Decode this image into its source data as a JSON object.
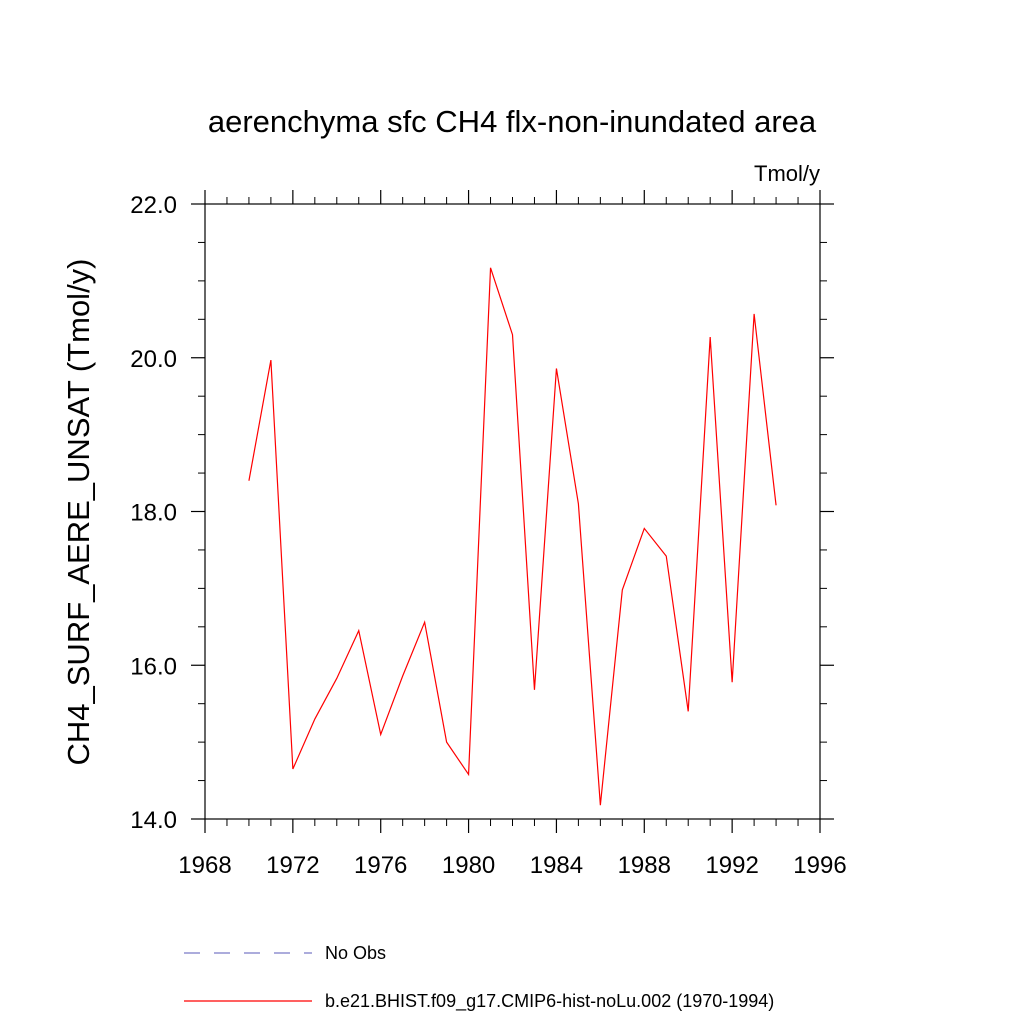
{
  "chart_data": {
    "type": "line",
    "title": "aerenchyma sfc CH4 flx-non-inundated area",
    "units_label": "Tmol/y",
    "xlabel": "",
    "ylabel": "CH4_SURF_AERE_UNSAT  (Tmol/y)",
    "xlim": [
      1968,
      1996
    ],
    "ylim": [
      14.0,
      22.0
    ],
    "x_ticks": [
      1968,
      1972,
      1976,
      1980,
      1984,
      1988,
      1992,
      1996
    ],
    "x_tick_labels": [
      "1968",
      "1972",
      "1976",
      "1980",
      "1984",
      "1988",
      "1992",
      "1996"
    ],
    "y_ticks": [
      14.0,
      16.0,
      18.0,
      20.0,
      22.0
    ],
    "y_tick_labels": [
      "14.0",
      "16.0",
      "18.0",
      "20.0",
      "22.0"
    ],
    "grid": false,
    "series": [
      {
        "name": "b.e21.BHIST.f09_g17.CMIP6-hist-noLu.002 (1970-1994)",
        "color": "#ff0000",
        "x": [
          1970,
          1971,
          1972,
          1973,
          1974,
          1975,
          1976,
          1977,
          1978,
          1979,
          1980,
          1981,
          1982,
          1983,
          1984,
          1985,
          1986,
          1987,
          1988,
          1989,
          1990,
          1991,
          1992,
          1993,
          1994
        ],
        "y": [
          18.4,
          19.97,
          14.65,
          15.3,
          15.83,
          16.45,
          15.1,
          15.86,
          16.56,
          15.0,
          14.58,
          21.17,
          20.3,
          15.68,
          19.86,
          18.1,
          14.18,
          16.98,
          17.78,
          17.42,
          15.4,
          20.27,
          15.78,
          20.57,
          18.08
        ]
      }
    ],
    "legend": {
      "placement": "bottom",
      "entries": [
        {
          "label": "No Obs",
          "color": "#7b7bc8",
          "style": "dashed"
        },
        {
          "label": "b.e21.BHIST.f09_g17.CMIP6-hist-noLu.002 (1970-1994)",
          "color": "#ff0000",
          "style": "solid"
        }
      ]
    }
  }
}
